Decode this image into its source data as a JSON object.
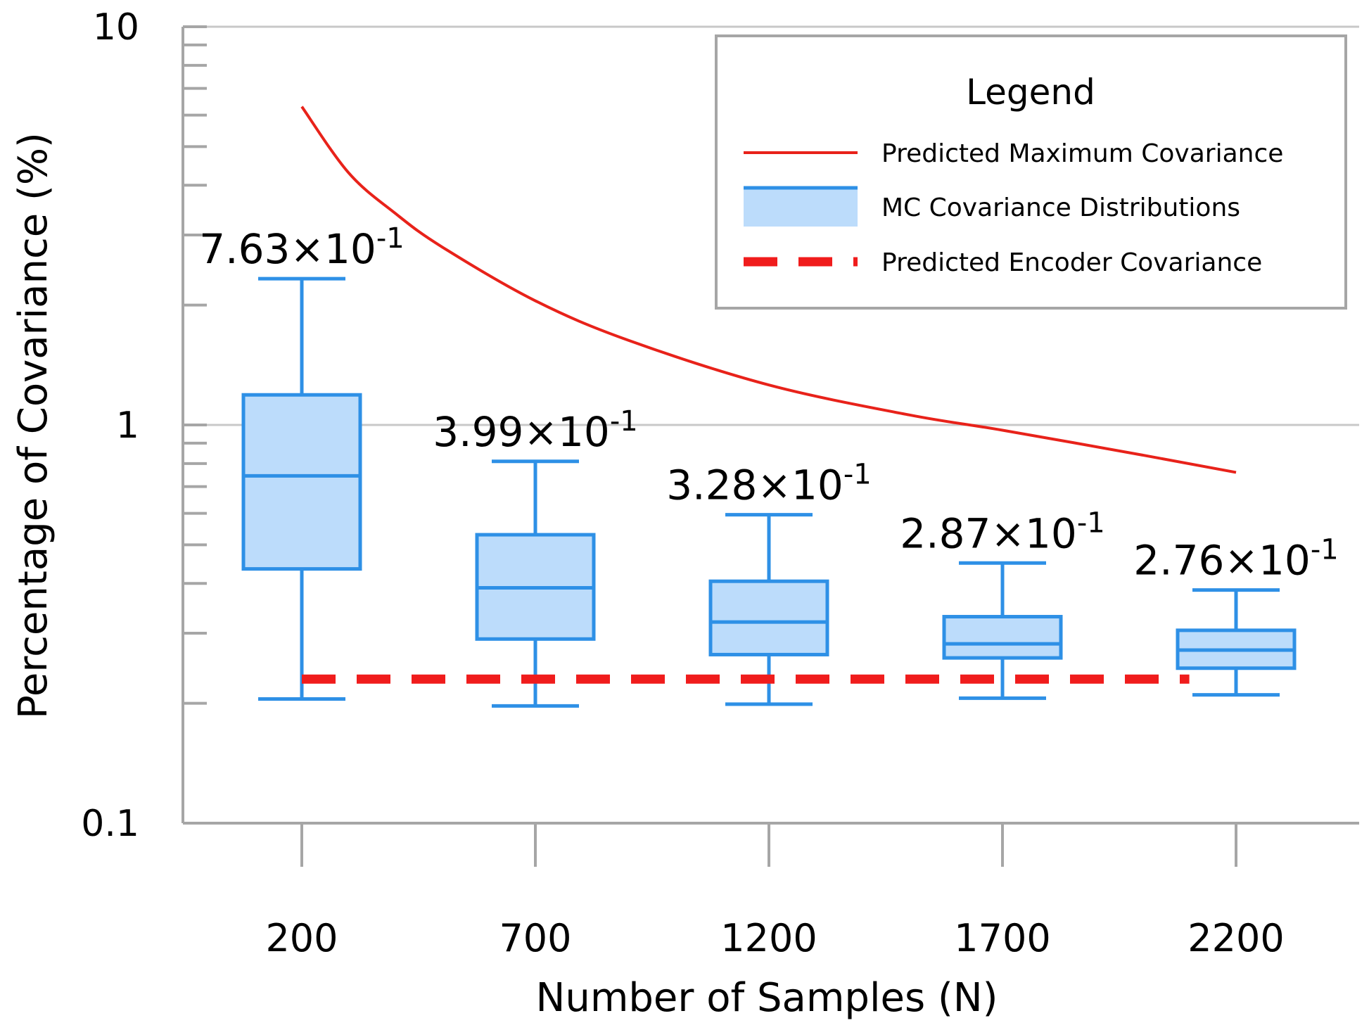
{
  "chart_data": {
    "type": "box",
    "xlabel": "Number of Samples (N)",
    "ylabel": "Percentage of Covariance (%)",
    "yscale": "log",
    "ylim": [
      0.1,
      10
    ],
    "yticks": [
      {
        "value": 10,
        "label": "10"
      },
      {
        "value": 1,
        "label": "1"
      },
      {
        "value": 0.1,
        "label": "0.1"
      }
    ],
    "categories": [
      "200",
      "700",
      "1200",
      "1700",
      "2200"
    ],
    "boxes": [
      {
        "label": "200",
        "min": 0.205,
        "q1": 0.435,
        "median": 0.745,
        "q3": 1.19,
        "max": 2.33,
        "annotation": {
          "mantissa": "7.63",
          "times": "×10",
          "exp": "-1"
        }
      },
      {
        "label": "700",
        "min": 0.197,
        "q1": 0.29,
        "median": 0.39,
        "q3": 0.53,
        "max": 0.81,
        "annotation": {
          "mantissa": "3.99",
          "times": "×10",
          "exp": "-1"
        }
      },
      {
        "label": "1200",
        "min": 0.199,
        "q1": 0.265,
        "median": 0.32,
        "q3": 0.405,
        "max": 0.595,
        "annotation": {
          "mantissa": "3.28",
          "times": "×10",
          "exp": "-1"
        }
      },
      {
        "label": "1700",
        "min": 0.206,
        "q1": 0.26,
        "median": 0.282,
        "q3": 0.33,
        "max": 0.45,
        "annotation": {
          "mantissa": "2.87",
          "times": "×10",
          "exp": "-1"
        }
      },
      {
        "label": "2200",
        "min": 0.21,
        "q1": 0.245,
        "median": 0.272,
        "q3": 0.305,
        "max": 0.385,
        "annotation": {
          "mantissa": "2.76",
          "times": "×10",
          "exp": "-1"
        }
      }
    ],
    "predicted_max": {
      "name": "Predicted Maximum Covariance",
      "x": [
        200,
        300,
        400,
        500,
        700,
        900,
        1200,
        1500,
        1700,
        2000,
        2200
      ],
      "y": [
        6.3,
        4.3,
        3.4,
        2.8,
        2.05,
        1.63,
        1.26,
        1.06,
        0.97,
        0.84,
        0.76
      ]
    },
    "predicted_encoder": {
      "name": "Predicted Encoder Covariance",
      "y": 0.23,
      "x_range": [
        200,
        2100
      ]
    },
    "legend": {
      "title": "Legend",
      "position": "top-right",
      "items": [
        {
          "label": "Predicted Maximum Covariance",
          "style": "red-line"
        },
        {
          "label": "MC Covariance Distributions",
          "style": "blue-box"
        },
        {
          "label": "Predicted Encoder Covariance",
          "style": "red-dashed"
        }
      ]
    },
    "colors": {
      "box_stroke": "#2e90e6",
      "box_fill": "#bcdcfb",
      "max_line": "#e8221a",
      "encoder_line": "#f01c1c",
      "axis": "#a6a6a6",
      "gridline": "#c8c8c8",
      "text": "#000000"
    }
  }
}
